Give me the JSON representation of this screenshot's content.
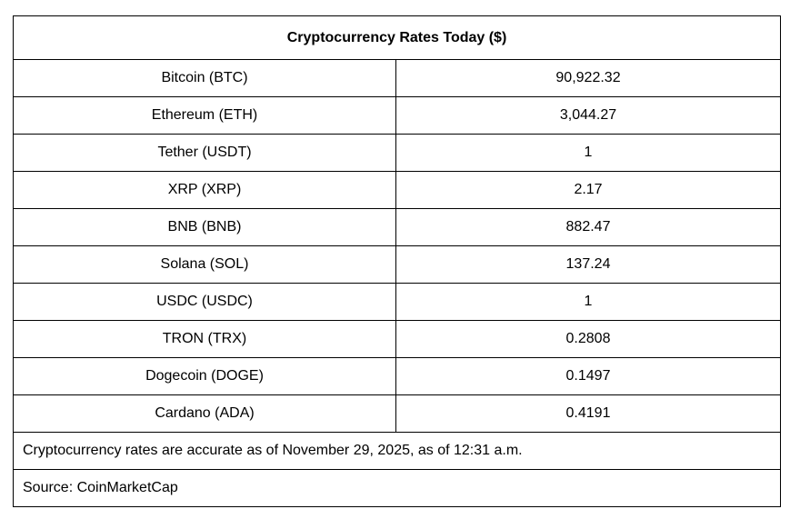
{
  "table": {
    "title": "Cryptocurrency Rates Today ($)",
    "rows": [
      {
        "name": "Bitcoin (BTC)",
        "value": "90,922.32"
      },
      {
        "name": "Ethereum (ETH)",
        "value": "3,044.27"
      },
      {
        "name": "Tether (USDT)",
        "value": "1"
      },
      {
        "name": "XRP (XRP)",
        "value": "2.17"
      },
      {
        "name": "BNB (BNB)",
        "value": "882.47"
      },
      {
        "name": "Solana (SOL)",
        "value": "137.24"
      },
      {
        "name": "USDC (USDC)",
        "value": "1"
      },
      {
        "name": "TRON (TRX)",
        "value": "0.2808"
      },
      {
        "name": "Dogecoin (DOGE)",
        "value": "0.1497"
      },
      {
        "name": "Cardano (ADA)",
        "value": "0.4191"
      }
    ],
    "note": "Cryptocurrency rates are accurate as of November 29, 2025, as of 12:31 a.m.",
    "source": "Source: CoinMarketCap"
  }
}
